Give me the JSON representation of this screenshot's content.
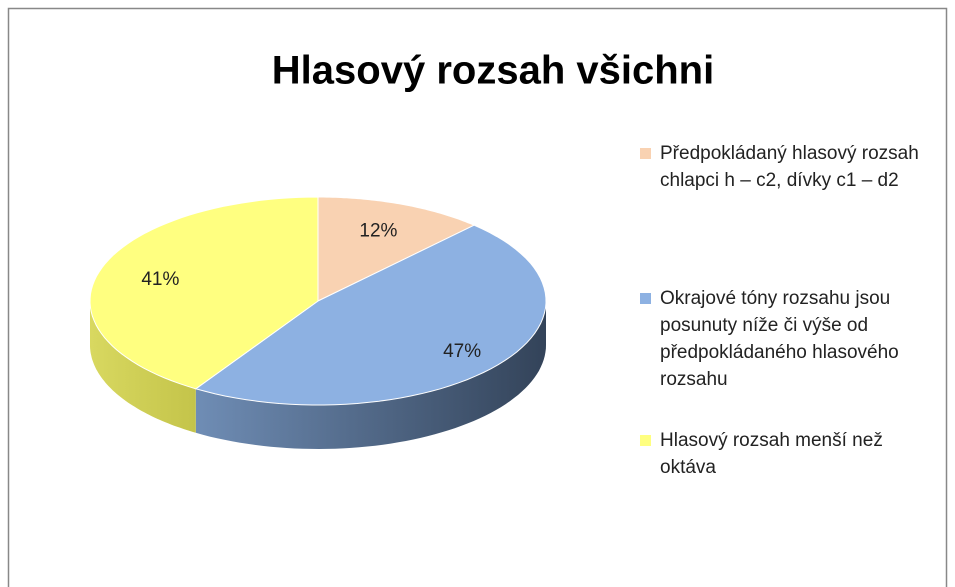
{
  "chart_data": {
    "type": "pie3d",
    "title": "Hlasový rozsah všichni",
    "categories": [
      "Předpokládaný hlasový rozsah chlapci h – c2, dívky c1 – d2",
      "Okrajové tóny rozsahu jsou posunuty níže či výše od předpokládaného hlasového rozsahu",
      "Hlasový rozsah menší než oktáva"
    ],
    "values": [
      12,
      47,
      41
    ],
    "value_labels": [
      "12%",
      "47%",
      "41%"
    ],
    "colors": [
      "#f9d2b2",
      "#8db1e2",
      "#ffff80"
    ],
    "legend": "right"
  }
}
